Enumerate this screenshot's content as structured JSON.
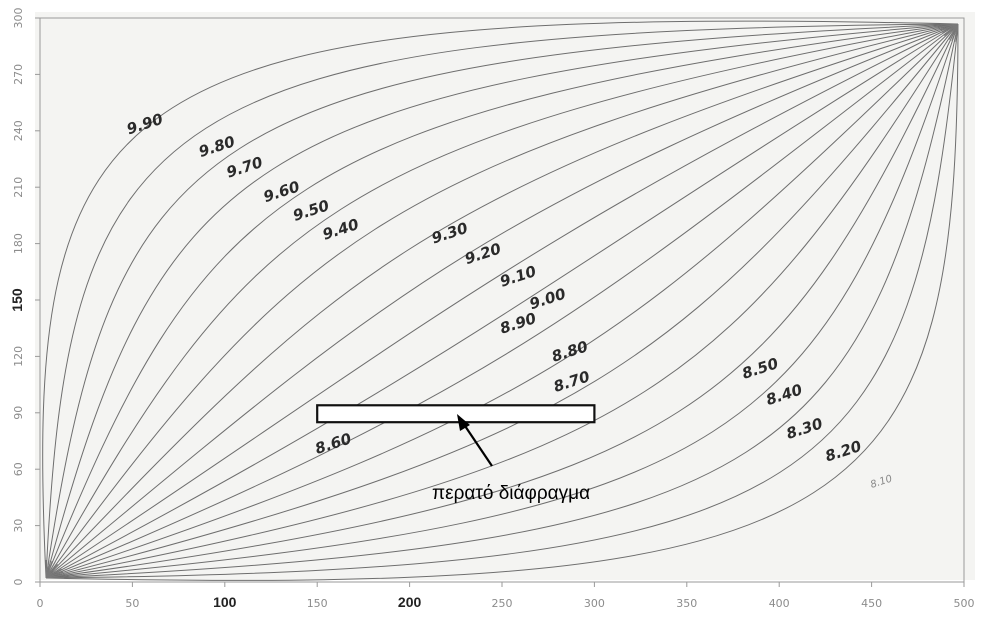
{
  "figure": {
    "x_axis": {
      "range": [
        0,
        500
      ],
      "ticks": [
        "0",
        "50",
        "100",
        "150",
        "200",
        "250",
        "300",
        "350",
        "400",
        "450",
        "500"
      ],
      "emphasized_ticks": [
        "100",
        "200"
      ]
    },
    "y_axis": {
      "range": [
        0,
        300
      ],
      "ticks": [
        "0",
        "30",
        "60",
        "90",
        "120",
        "150",
        "180",
        "210",
        "240",
        "270",
        "300"
      ],
      "emphasized_ticks": [
        "150"
      ]
    },
    "contour_labels": [
      {
        "text": "9.90",
        "at": [
          48,
          238
        ]
      },
      {
        "text": "9.80",
        "at": [
          87,
          226
        ]
      },
      {
        "text": "9.70",
        "at": [
          102,
          215
        ]
      },
      {
        "text": "9.60",
        "at": [
          122,
          202
        ]
      },
      {
        "text": "9.50",
        "at": [
          138,
          192
        ]
      },
      {
        "text": "9.40",
        "at": [
          154,
          182
        ]
      },
      {
        "text": "9.30",
        "at": [
          213,
          180
        ]
      },
      {
        "text": "9.20",
        "at": [
          231,
          169
        ]
      },
      {
        "text": "9.10",
        "at": [
          250,
          157
        ]
      },
      {
        "text": "9.00",
        "at": [
          266,
          145
        ]
      },
      {
        "text": "8.90",
        "at": [
          250,
          132
        ]
      },
      {
        "text": "8.80",
        "at": [
          278,
          117
        ]
      },
      {
        "text": "8.70",
        "at": [
          279,
          101
        ]
      },
      {
        "text": "8.60",
        "at": [
          150,
          68
        ]
      },
      {
        "text": "8.50",
        "at": [
          381,
          108
        ]
      },
      {
        "text": "8.40",
        "at": [
          394,
          94
        ]
      },
      {
        "text": "8.30",
        "at": [
          405,
          76
        ]
      },
      {
        "text": "8.20",
        "at": [
          426,
          64
        ]
      },
      {
        "text": "8.10",
        "at": [
          450,
          50
        ],
        "faint": true
      }
    ],
    "barrier": {
      "x_range": [
        150,
        300
      ],
      "y_range": [
        85,
        94
      ]
    },
    "annotation": {
      "text": "περατό διάφραγμα"
    }
  }
}
